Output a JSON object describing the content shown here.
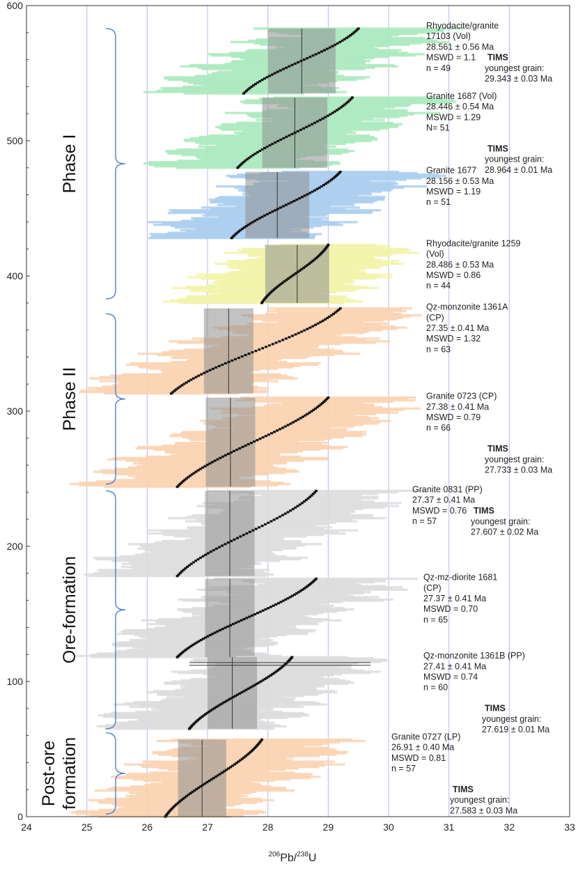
{
  "chart_data": {
    "type": "scatter",
    "xlabel": {
      "pre": "206",
      "mid": "Pb/",
      "sup2": "238",
      "post": "U"
    },
    "xlim": [
      24,
      33
    ],
    "ylim": [
      0,
      600
    ],
    "x_ticks": [
      "24",
      "25",
      "26",
      "27",
      "28",
      "29",
      "30",
      "31",
      "32",
      "33"
    ],
    "y_ticks": [
      "0",
      "100",
      "200",
      "300",
      "400",
      "500",
      "600"
    ],
    "colors": {
      "green": "#a9e9bd",
      "blue": "#a9cdef",
      "yellow": "#f2f3a7",
      "orange": "#f9d2b0",
      "gray": "#dcdcdc",
      "box": "#8f8f8f",
      "vgrid": "#b8b8ee",
      "brace": "#4a7fd0"
    },
    "samples": [
      {
        "name": "Rhyodacite/granite 17103",
        "y0": 535,
        "y1": 583,
        "n": 49,
        "mean": 28.561,
        "err": 0.56,
        "xmin": 27.6,
        "xmax": 29.5,
        "color": "green",
        "label": [
          "Rhyodacite/granite",
          "17103 (Vol)",
          "28.561 ± 0.56 Ma",
          "MSWD = 1.1",
          "n = 49"
        ],
        "tims": [
          "TIMS",
          "youngest grain:",
          "29.343 ± 0.03 Ma"
        ]
      },
      {
        "name": "Granite 1687",
        "y0": 480,
        "y1": 532,
        "n": 51,
        "mean": 28.446,
        "err": 0.54,
        "xmin": 27.5,
        "xmax": 29.4,
        "color": "green",
        "label": [
          "Granite 1687 (Vol)",
          "28.446 ± 0.54 Ma",
          "MSWD = 1.29",
          "N= 51"
        ],
        "tims": [
          "TIMS",
          "youngest grain:",
          "28.964 ± 0.01 Ma"
        ]
      },
      {
        "name": "Granite 1677",
        "y0": 428,
        "y1": 477,
        "n": 51,
        "mean": 28.156,
        "err": 0.53,
        "xmin": 27.4,
        "xmax": 29.2,
        "color": "blue",
        "label": [
          "Granite 1677",
          "28.156 ± 0.53 Ma",
          "MSWD = 1.19",
          "n = 51"
        ],
        "tims": null
      },
      {
        "name": "Rhyodacite/granite 1259",
        "y0": 380,
        "y1": 423,
        "n": 44,
        "mean": 28.486,
        "err": 0.53,
        "xmin": 27.9,
        "xmax": 29.0,
        "color": "yellow",
        "label": [
          "Rhyodacite/granite 1259",
          "(Vol)",
          "28.486 ± 0.53 Ma",
          "MSWD = 0.86",
          "n = 44"
        ],
        "tims": null
      },
      {
        "name": "Qz-monzonite 1361A",
        "y0": 313,
        "y1": 376,
        "n": 63,
        "mean": 27.35,
        "err": 0.41,
        "xmin": 26.4,
        "xmax": 29.2,
        "color": "orange",
        "label": [
          "Qz-monzonite 1361A",
          "(CP)",
          "27.35 ± 0.41 Ma",
          "MSWD = 1.32",
          "n = 63"
        ],
        "tims": null
      },
      {
        "name": "Granite 0723",
        "y0": 244,
        "y1": 310,
        "n": 66,
        "mean": 27.38,
        "err": 0.41,
        "xmin": 26.5,
        "xmax": 29.0,
        "color": "orange",
        "label": [
          "Granite 0723 (CP)",
          "27.38 ± 0.41 Ma",
          "MSWD = 0.79",
          "n = 66"
        ],
        "tims": [
          "TIMS",
          "youngest grain:",
          "27.733 ± 0.03 Ma"
        ]
      },
      {
        "name": "Granite 0831",
        "y0": 178,
        "y1": 241,
        "n": 57,
        "mean": 27.37,
        "err": 0.41,
        "xmin": 26.5,
        "xmax": 28.8,
        "color": "gray",
        "label": [
          "Granite 0831 (PP)",
          "27.37 ± 0.41 Ma",
          "MSWD = 0.76",
          "n = 57"
        ],
        "tims": [
          "TIMS",
          "youngest grain:",
          "27.607 ± 0.02 Ma"
        ]
      },
      {
        "name": "Qz-mz-diorite 1681",
        "y0": 118,
        "y1": 176,
        "n": 65,
        "mean": 27.37,
        "err": 0.41,
        "xmin": 26.5,
        "xmax": 28.8,
        "color": "gray",
        "label": [
          "Qz-mz-diorite 1681",
          "(CP)",
          "27.37 ± 0.41 Ma",
          "MSWD = 0.70",
          "n = 65"
        ],
        "tims": null
      },
      {
        "name": "Qz-monzonite 1361B",
        "y0": 65,
        "y1": 118,
        "n": 60,
        "mean": 27.41,
        "err": 0.41,
        "xmin": 26.7,
        "xmax": 28.4,
        "color": "gray",
        "label": [
          "Qz-monzonite 1361B (PP)",
          "27.41 ± 0.41 Ma",
          "MSWD = 0.74",
          "n = 60"
        ],
        "tims": [
          "TIMS",
          "youngest grain:",
          "27.619 ± 0.01 Ma"
        ]
      },
      {
        "name": "Granite 0727",
        "y0": 0,
        "y1": 57,
        "n": 57,
        "mean": 26.91,
        "err": 0.4,
        "xmin": 26.3,
        "xmax": 27.9,
        "color": "orange",
        "label": [
          "Granite 0727 (LP)",
          "26.91 ± 0.40 Ma",
          "MSWD = 0.81",
          "n = 57"
        ],
        "tims": [
          "TIMS",
          "youngest grain:",
          "27.583 ± 0.03 Ma"
        ]
      }
    ],
    "phases": [
      {
        "text": "Phase I",
        "y0": 383,
        "y1": 583
      },
      {
        "text": "Phase II",
        "y0": 246,
        "y1": 372
      },
      {
        "text": "Ore-formation",
        "y0": 65,
        "y1": 241
      },
      {
        "lines": [
          "Post-ore",
          "formation"
        ],
        "y0": 2,
        "y1": 62
      }
    ]
  }
}
